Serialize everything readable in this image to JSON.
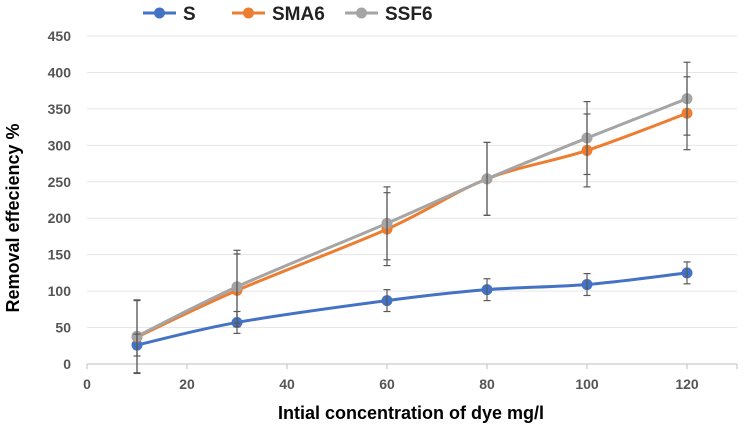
{
  "chart_data": {
    "type": "line",
    "title": "",
    "xlabel": "Intial concentration of dye mg/l",
    "ylabel": "Removal effeciency %",
    "xlim": [
      0,
      130
    ],
    "ylim": [
      0,
      450
    ],
    "x_ticks": [
      0,
      20,
      40,
      60,
      80,
      100,
      120
    ],
    "y_ticks": [
      0,
      50,
      100,
      150,
      200,
      250,
      300,
      350,
      400,
      450
    ],
    "legend_position": "top",
    "x": [
      10,
      30,
      60,
      80,
      100,
      120
    ],
    "series": [
      {
        "name": "S",
        "color": "#4472C4",
        "values": [
          26,
          57,
          87,
          102,
          109,
          125
        ],
        "errors": [
          15,
          15,
          15,
          15,
          15,
          15
        ]
      },
      {
        "name": "SMA6",
        "color": "#ED7D31",
        "values": [
          37,
          101,
          185,
          254,
          293,
          344
        ],
        "errors": [
          50,
          50,
          50,
          50,
          50,
          50
        ]
      },
      {
        "name": "SSF6",
        "color": "#A5A5A5",
        "values": [
          38,
          106,
          193,
          254,
          310,
          364
        ],
        "errors": [
          50,
          50,
          50,
          50,
          50,
          50
        ]
      }
    ]
  }
}
